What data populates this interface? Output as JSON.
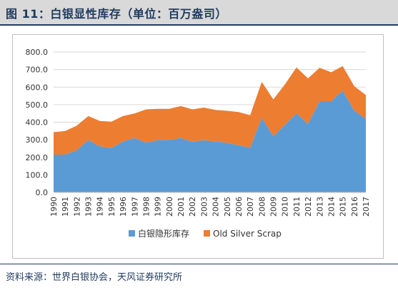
{
  "figure_title": "图 11：白银显性库存（单位：百万盎司）",
  "source": "资料来源：世界白银协会，天风证券研究所",
  "colors": {
    "series1": "#5b9bd5",
    "series2": "#ed7d31",
    "grid": "#d9d9d9",
    "title_bg": "#d9d9d9",
    "title_text": "#1f3a5f"
  },
  "chart_data": {
    "type": "area",
    "stacked": true,
    "title": "",
    "xlabel": "",
    "ylabel": "",
    "ylim": [
      0,
      800
    ],
    "y_ticks": [
      "0.0",
      "100.0",
      "200.0",
      "300.0",
      "400.0",
      "500.0",
      "600.0",
      "700.0",
      "800.0"
    ],
    "grid": true,
    "legend_position": "bottom",
    "x": [
      "1990",
      "1991",
      "1992",
      "1993",
      "1994",
      "1995",
      "1996",
      "1997",
      "1998",
      "1999",
      "2000",
      "2001",
      "2002",
      "2003",
      "2004",
      "2005",
      "2006",
      "2007",
      "2008",
      "2009",
      "2010",
      "2011",
      "2012",
      "2013",
      "2014",
      "2015",
      "2016",
      "2017"
    ],
    "series": [
      {
        "name": "白银隐形库存",
        "values": [
          215,
          215,
          240,
          298,
          262,
          253,
          290,
          310,
          283,
          298,
          298,
          310,
          288,
          298,
          290,
          282,
          268,
          255,
          425,
          320,
          385,
          450,
          390,
          520,
          520,
          580,
          465,
          420
        ]
      },
      {
        "name": "Old Silver Scrap",
        "values": [
          128,
          135,
          140,
          137,
          145,
          150,
          145,
          140,
          190,
          178,
          178,
          182,
          185,
          185,
          180,
          183,
          190,
          185,
          205,
          210,
          230,
          262,
          260,
          190,
          165,
          140,
          140,
          135
        ]
      }
    ]
  }
}
